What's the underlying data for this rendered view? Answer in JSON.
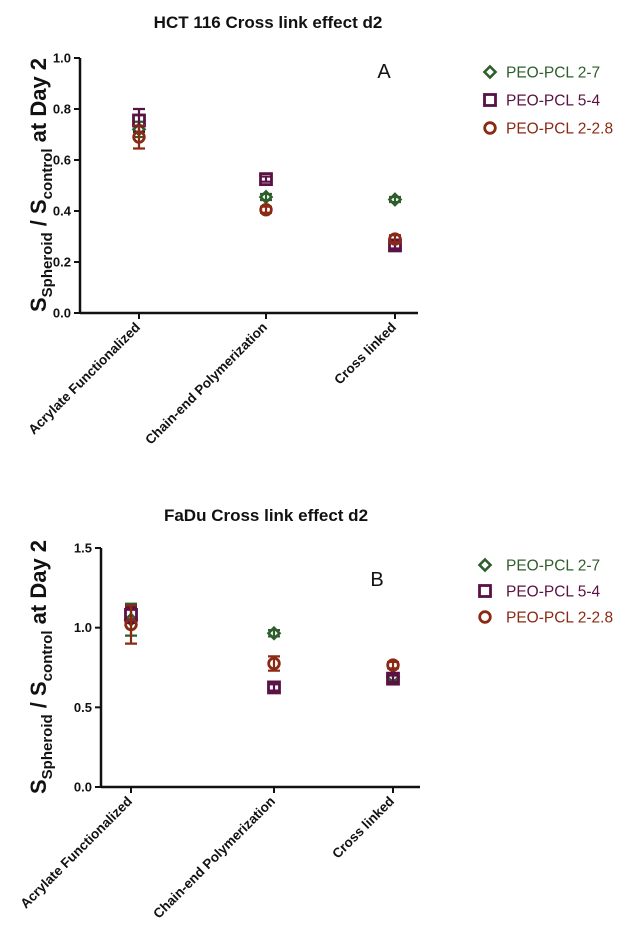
{
  "chart_data": [
    {
      "type": "scatter",
      "title": "HCT 116 Cross link effect d2",
      "panel_label": "A",
      "ylabel": {
        "main_a": "S",
        "sub_a": "Spheroid",
        "main_b": " / S",
        "sub_b": "control",
        "main_c": " at Day 2"
      },
      "categories": [
        "Acrylate Functionalized",
        "Chain-end Polymerization",
        "Cross linked"
      ],
      "ylim": [
        0.0,
        1.0
      ],
      "yticks": [
        "0.0",
        "0.2",
        "0.4",
        "0.6",
        "0.8",
        "1.0"
      ],
      "ytick_values": [
        0.0,
        0.2,
        0.4,
        0.6,
        0.8,
        1.0
      ],
      "series": [
        {
          "name": "PEO-PCL 2-7",
          "marker": "diamond",
          "color": "#2e5e2c",
          "values": [
            0.72,
            0.455,
            0.445
          ],
          "err": [
            0.03,
            0.012,
            0.01
          ]
        },
        {
          "name": "PEO-PCL 5-4",
          "marker": "square",
          "color": "#5a1143",
          "values": [
            0.755,
            0.525,
            0.265
          ],
          "err": [
            0.045,
            0.01,
            0.012
          ]
        },
        {
          "name": "PEO-PCL 2-2.8",
          "marker": "circle",
          "color": "#8a2a14",
          "values": [
            0.69,
            0.405,
            0.29
          ],
          "err": [
            0.045,
            0.012,
            0.015
          ]
        }
      ],
      "legend_position": "right"
    },
    {
      "type": "scatter",
      "title": "FaDu Cross link effect d2",
      "panel_label": "B",
      "ylabel": {
        "main_a": "S",
        "sub_a": "Spheroid",
        "main_b": " / S",
        "sub_b": "control",
        "main_c": " at Day 2"
      },
      "categories": [
        "Acrylate Functionalized",
        "Chain-end Polymerization",
        "Cross linked"
      ],
      "ylim": [
        0.0,
        1.5
      ],
      "yticks": [
        "0.0",
        "0.5",
        "1.0",
        "1.5"
      ],
      "ytick_values": [
        0.0,
        0.5,
        1.0,
        1.5
      ],
      "series": [
        {
          "name": "PEO-PCL 2-7",
          "marker": "diamond",
          "color": "#2e5e2c",
          "values": [
            1.05,
            0.965,
            0.69
          ],
          "err": [
            0.1,
            0.02,
            0.02
          ]
        },
        {
          "name": "PEO-PCL 5-4",
          "marker": "square",
          "color": "#5a1143",
          "values": [
            1.08,
            0.625,
            0.68
          ],
          "err": [
            0.05,
            0.02,
            0.02
          ]
        },
        {
          "name": "PEO-PCL 2-2.8",
          "marker": "circle",
          "color": "#8a2a14",
          "values": [
            1.02,
            0.775,
            0.765
          ],
          "err": [
            0.12,
            0.045,
            0.02
          ]
        }
      ],
      "legend_position": "right"
    }
  ]
}
